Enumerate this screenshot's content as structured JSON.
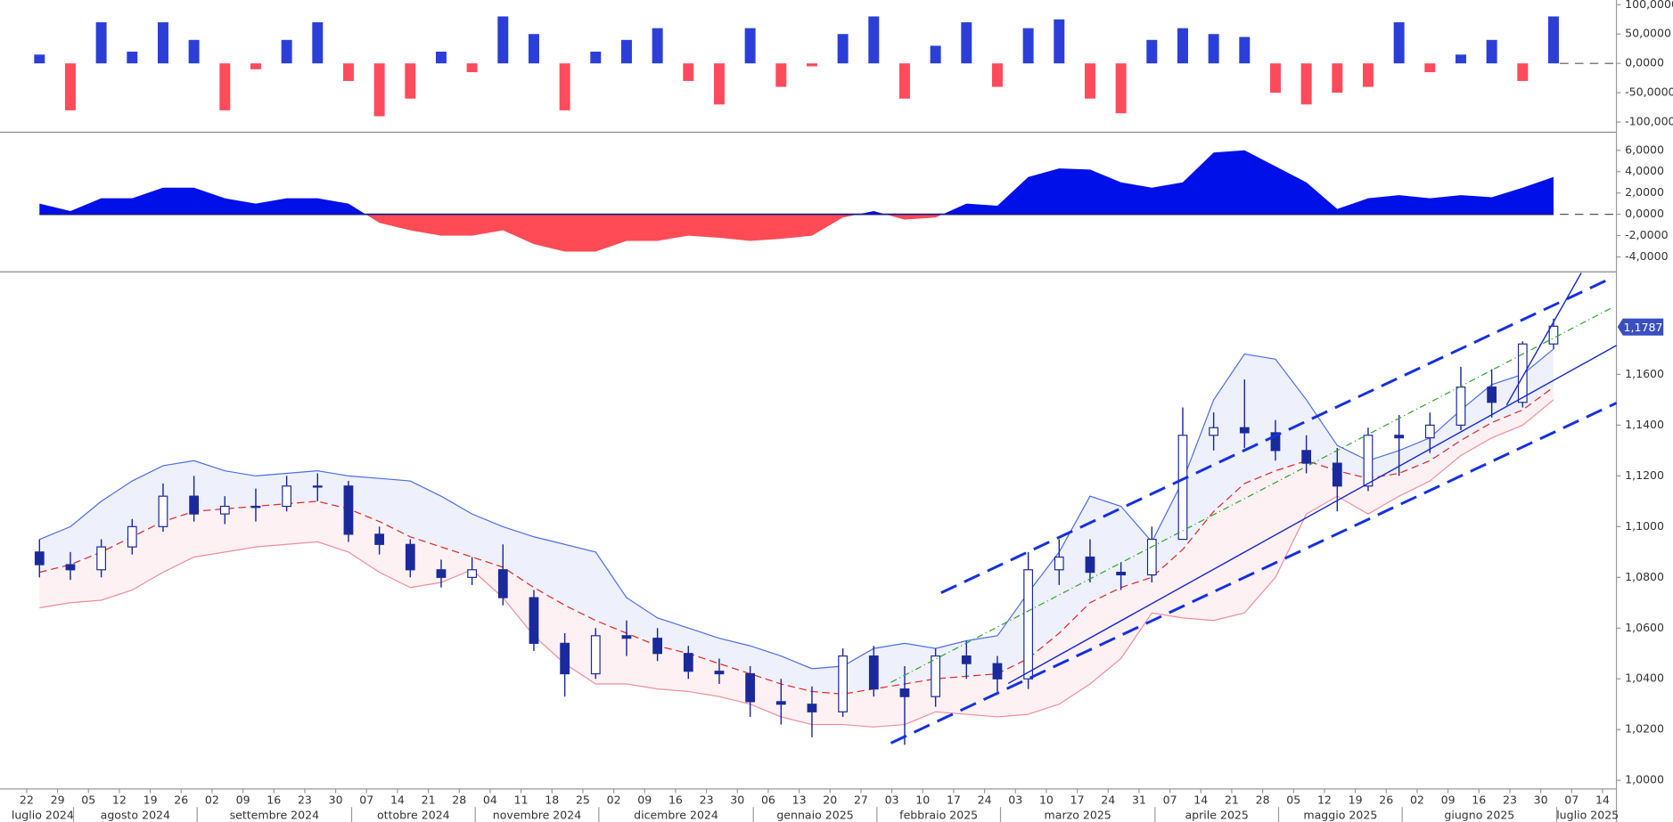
{
  "chart_data": [
    {
      "type": "bar",
      "up_color": "#2b3fd8",
      "down_color": "#ff4b5c",
      "values": [
        15000,
        -80000,
        70000,
        20000,
        70000,
        40000,
        -80000,
        -10000,
        40000,
        70000,
        -30000,
        -90000,
        -60000,
        20000,
        -15000,
        80000,
        50000,
        -80000,
        20000,
        40000,
        60000,
        -30000,
        -70000,
        60000,
        -40000,
        -5000,
        50000,
        80000,
        -60000,
        30000,
        70000,
        -40000,
        60000,
        75000,
        -60000,
        -85000,
        40000,
        60000,
        50000,
        45000,
        -50000,
        -70000,
        -50000,
        -40000,
        70000,
        -15000,
        15000,
        40000,
        -30000,
        80000,
        null,
        null
      ],
      "ylim": [
        -110000,
        108000
      ],
      "yticks": [
        {
          "value": 100000,
          "label": "100,0000"
        },
        {
          "value": 50000,
          "label": "50,0000"
        },
        {
          "value": 0,
          "label": "0,0000"
        },
        {
          "value": -50000,
          "label": "-50,0000"
        },
        {
          "value": -100000,
          "label": "-100,0000"
        }
      ]
    },
    {
      "type": "area",
      "up_color": "#0010e8",
      "down_color": "#ff4b55",
      "values": [
        1.0,
        0.3,
        1.5,
        1.5,
        2.5,
        2.5,
        1.5,
        1.0,
        1.5,
        1.5,
        1.0,
        -0.8,
        -1.5,
        -2.0,
        -2.0,
        -1.5,
        -2.8,
        -3.5,
        -3.5,
        -2.5,
        -2.5,
        -2.0,
        -2.2,
        -2.5,
        -2.3,
        -2.0,
        -0.3,
        0.3,
        -0.5,
        -0.3,
        1.0,
        0.8,
        3.5,
        4.3,
        4.2,
        3.0,
        2.5,
        3.0,
        5.8,
        6.0,
        4.5,
        3.0,
        0.5,
        1.5,
        1.8,
        1.5,
        1.8,
        1.6,
        2.5,
        3.5,
        null,
        null
      ],
      "ylim": [
        -5.3,
        7.6
      ],
      "yticks": [
        {
          "value": 6,
          "label": "6,0000"
        },
        {
          "value": 4,
          "label": "4,0000"
        },
        {
          "value": 2,
          "label": "2,0000"
        },
        {
          "value": 0,
          "label": "0,0000"
        },
        {
          "value": -2,
          "label": "-2,0000"
        },
        {
          "value": -4,
          "label": "-4,0000"
        }
      ]
    },
    {
      "type": "candlestick",
      "categories": [
        "22",
        "29",
        "05",
        "12",
        "19",
        "26",
        "02",
        "09",
        "16",
        "23",
        "30",
        "07",
        "14",
        "21",
        "28",
        "04",
        "11",
        "18",
        "25",
        "02",
        "09",
        "16",
        "23",
        "30",
        "06",
        "13",
        "20",
        "27",
        "03",
        "10",
        "17",
        "24",
        "03",
        "10",
        "17",
        "24",
        "31",
        "07",
        "14",
        "21",
        "28",
        "05",
        "12",
        "19",
        "26",
        "02",
        "09",
        "16",
        "23",
        "30",
        "07",
        "14"
      ],
      "months": [
        "luglio 2024",
        "agosto 2024",
        "settembre 2024",
        "ottobre 2024",
        "novembre 2024",
        "dicembre 2024",
        "gennaio 2025",
        "febbraio 2025",
        "marzo 2025",
        "aprile 2025",
        "maggio 2025",
        "giugno 2025",
        "luglio 2025"
      ],
      "open": [
        1.09,
        1.085,
        1.083,
        1.092,
        1.1,
        1.112,
        1.105,
        1.108,
        1.108,
        1.116,
        1.116,
        1.097,
        1.093,
        1.083,
        1.08,
        1.083,
        1.072,
        1.054,
        1.042,
        1.057,
        1.056,
        1.05,
        1.043,
        1.042,
        1.031,
        1.03,
        1.027,
        1.049,
        1.036,
        1.033,
        1.049,
        1.046,
        1.04,
        1.083,
        1.088,
        1.082,
        1.081,
        1.095,
        1.136,
        1.139,
        1.137,
        1.13,
        1.125,
        1.116,
        1.136,
        1.135,
        1.14,
        1.155,
        1.149,
        1.172,
        null,
        null
      ],
      "high": [
        1.095,
        1.09,
        1.095,
        1.103,
        1.117,
        1.12,
        1.112,
        1.115,
        1.12,
        1.121,
        1.118,
        1.1,
        1.095,
        1.087,
        1.088,
        1.093,
        1.075,
        1.058,
        1.06,
        1.063,
        1.06,
        1.053,
        1.048,
        1.045,
        1.04,
        1.037,
        1.052,
        1.053,
        1.045,
        1.052,
        1.055,
        1.049,
        1.09,
        1.095,
        1.095,
        1.086,
        1.1,
        1.147,
        1.145,
        1.158,
        1.142,
        1.136,
        1.131,
        1.139,
        1.144,
        1.145,
        1.163,
        1.162,
        1.173,
        1.182,
        null,
        null
      ],
      "low": [
        1.08,
        1.079,
        1.08,
        1.089,
        1.098,
        1.102,
        1.101,
        1.102,
        1.106,
        1.11,
        1.094,
        1.089,
        1.08,
        1.076,
        1.077,
        1.069,
        1.051,
        1.033,
        1.04,
        1.049,
        1.047,
        1.04,
        1.038,
        1.025,
        1.022,
        1.017,
        1.025,
        1.033,
        1.014,
        1.029,
        1.04,
        1.035,
        1.036,
        1.077,
        1.078,
        1.075,
        1.078,
        1.095,
        1.13,
        1.131,
        1.126,
        1.121,
        1.106,
        1.114,
        1.12,
        1.129,
        1.138,
        1.143,
        1.147,
        1.17,
        null,
        null
      ],
      "close": [
        1.085,
        1.083,
        1.092,
        1.1,
        1.112,
        1.105,
        1.108,
        1.108,
        1.116,
        1.116,
        1.097,
        1.093,
        1.083,
        1.08,
        1.083,
        1.072,
        1.054,
        1.042,
        1.057,
        1.056,
        1.05,
        1.043,
        1.042,
        1.031,
        1.03,
        1.027,
        1.049,
        1.036,
        1.033,
        1.049,
        1.046,
        1.04,
        1.083,
        1.088,
        1.082,
        1.081,
        1.095,
        1.136,
        1.139,
        1.137,
        1.13,
        1.125,
        1.116,
        1.136,
        1.135,
        1.14,
        1.155,
        1.149,
        1.172,
        1.179,
        null,
        null
      ],
      "upper_band": [
        1.095,
        1.1,
        1.11,
        1.118,
        1.124,
        1.126,
        1.122,
        1.12,
        1.121,
        1.122,
        1.12,
        1.119,
        1.118,
        1.112,
        1.105,
        1.1,
        1.096,
        1.093,
        1.09,
        1.072,
        1.064,
        1.06,
        1.056,
        1.053,
        1.049,
        1.044,
        1.045,
        1.052,
        1.054,
        1.052,
        1.055,
        1.057,
        1.074,
        1.09,
        1.112,
        1.108,
        1.094,
        1.118,
        1.15,
        1.168,
        1.166,
        1.15,
        1.132,
        1.126,
        1.13,
        1.135,
        1.146,
        1.156,
        1.16,
        1.17,
        null,
        null
      ],
      "lower_band": [
        1.068,
        1.07,
        1.071,
        1.075,
        1.082,
        1.088,
        1.09,
        1.092,
        1.093,
        1.094,
        1.09,
        1.082,
        1.076,
        1.078,
        1.083,
        1.072,
        1.057,
        1.046,
        1.038,
        1.038,
        1.036,
        1.035,
        1.033,
        1.03,
        1.025,
        1.022,
        1.022,
        1.021,
        1.022,
        1.027,
        1.026,
        1.025,
        1.026,
        1.03,
        1.038,
        1.048,
        1.066,
        1.064,
        1.063,
        1.066,
        1.08,
        1.105,
        1.112,
        1.105,
        1.112,
        1.118,
        1.128,
        1.135,
        1.14,
        1.15,
        null,
        null
      ],
      "moving_average": [
        1.082,
        1.085,
        1.09,
        1.096,
        1.102,
        1.106,
        1.107,
        1.108,
        1.109,
        1.11,
        1.107,
        1.102,
        1.096,
        1.092,
        1.088,
        1.084,
        1.076,
        1.069,
        1.063,
        1.058,
        1.053,
        1.05,
        1.046,
        1.042,
        1.038,
        1.035,
        1.034,
        1.036,
        1.038,
        1.04,
        1.041,
        1.042,
        1.048,
        1.058,
        1.07,
        1.076,
        1.08,
        1.091,
        1.106,
        1.117,
        1.122,
        1.126,
        1.122,
        1.119,
        1.121,
        1.126,
        1.134,
        1.141,
        1.146,
        1.155,
        null,
        null
      ],
      "up_color": "#ffffff",
      "down_color": "#1a2a9c",
      "candle_border": "#1a2a9c",
      "upper_band_color": "#4a6ee6",
      "lower_band_color": "#f08c9c",
      "moving_average_color": "#e02525",
      "upper_fill": "#eef0fb",
      "lower_fill": "#fdf1f3",
      "last_price": 1.1787,
      "last_price_label": "1,1787",
      "ylim": [
        0.9966,
        1.2
      ],
      "yticks": [
        {
          "value": 1.0,
          "label": "1,0000"
        },
        {
          "value": 1.02,
          "label": "1,0200"
        },
        {
          "value": 1.04,
          "label": "1,0400"
        },
        {
          "value": 1.06,
          "label": "1,0600"
        },
        {
          "value": 1.08,
          "label": "1,0800"
        },
        {
          "value": 1.1,
          "label": "1,1000"
        },
        {
          "value": 1.12,
          "label": "1,1200"
        },
        {
          "value": 1.14,
          "label": "1,1400"
        },
        {
          "value": 1.16,
          "label": "1,1600"
        }
      ]
    }
  ]
}
